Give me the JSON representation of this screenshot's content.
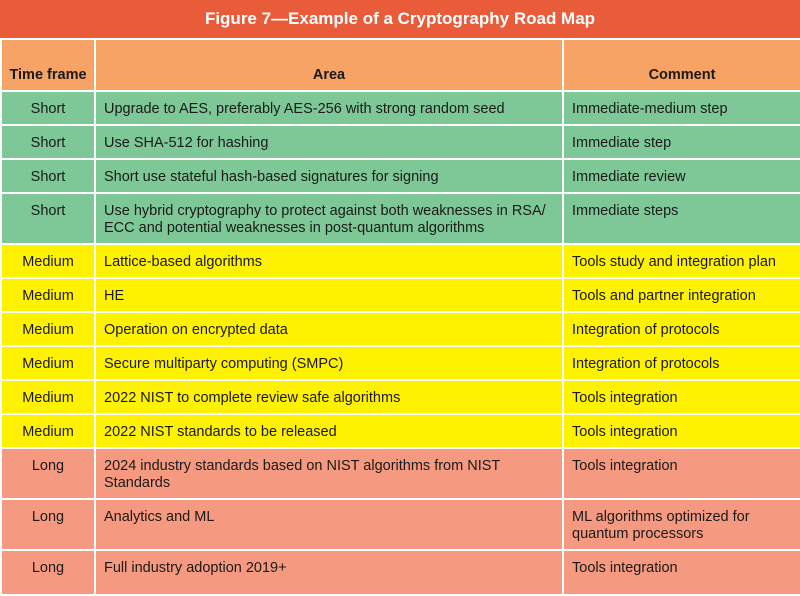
{
  "title": "Figure 7—Example of a Cryptography Road Map",
  "columns": {
    "time_frame": "Time frame",
    "area": "Area",
    "comment": "Comment"
  },
  "rows": [
    {
      "time_frame": "Short",
      "area": "Upgrade to AES, preferably AES-256 with strong random seed",
      "comment": "Immediate-medium step"
    },
    {
      "time_frame": "Short",
      "area": "Use SHA-512 for hashing",
      "comment": "Immediate step"
    },
    {
      "time_frame": "Short",
      "area": "Short use stateful hash-based signatures for signing",
      "comment": "Immediate review"
    },
    {
      "time_frame": "Short",
      "area": "Use hybrid cryptography to protect against both weaknesses in RSA/ ECC and potential weaknesses in post-quantum algorithms",
      "comment": "Immediate steps"
    },
    {
      "time_frame": "Medium",
      "area": "Lattice-based algorithms",
      "comment": "Tools study and integration plan"
    },
    {
      "time_frame": "Medium",
      "area": "HE",
      "comment": "Tools and partner integration"
    },
    {
      "time_frame": "Medium",
      "area": "Operation on encrypted data",
      "comment": "Integration of protocols"
    },
    {
      "time_frame": "Medium",
      "area": "Secure multiparty computing (SMPC)",
      "comment": "Integration of protocols"
    },
    {
      "time_frame": "Medium",
      "area": "2022 NIST to complete review safe algorithms",
      "comment": "Tools integration"
    },
    {
      "time_frame": "Medium",
      "area": "2022 NIST standards to be released",
      "comment": "Tools integration"
    },
    {
      "time_frame": "Long",
      "area": "2024 industry standards based on NIST algorithms from NIST Standards",
      "comment": "Tools integration"
    },
    {
      "time_frame": "Long",
      "area": "Analytics and ML",
      "comment": "ML algorithms optimized for quantum processors"
    },
    {
      "time_frame": "Long",
      "area": "Full industry adoption 2019+",
      "comment": "Tools integration"
    }
  ]
}
